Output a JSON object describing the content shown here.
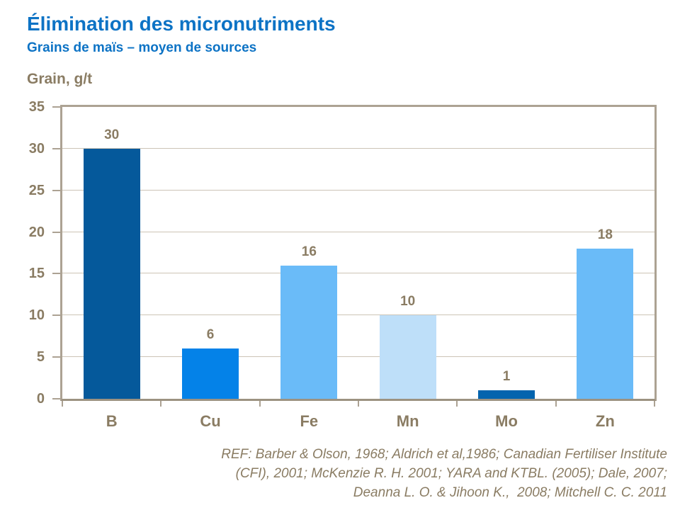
{
  "header": {
    "title": "Élimination des micronutriments",
    "subtitle": "Grains de maïs – moyen de sources"
  },
  "chart_data": {
    "type": "bar",
    "title": "Élimination des micronutriments",
    "subtitle": "Grains de maïs – moyen de sources",
    "ylabel": "Grain, g/t",
    "xlabel": "",
    "categories": [
      "B",
      "Cu",
      "Fe",
      "Mn",
      "Mo",
      "Zn"
    ],
    "values": [
      30,
      6,
      16,
      10,
      1,
      18
    ],
    "bar_colors": [
      "#05599b",
      "#0482e8",
      "#6abbf8",
      "#bedff9",
      "#0464ae",
      "#6abbf8"
    ],
    "ylim": [
      0,
      35
    ],
    "ytick_step": 5,
    "grid": true,
    "legend": false,
    "data_labels": true
  },
  "footer": {
    "reference_lines": [
      "REF: Barber & Olson, 1968; Aldrich et al,1986; Canadian Fertiliser Institute",
      "(CFI), 2001; McKenzie R. H. 2001; YARA and KTBL. (2005); Dale, 2007;",
      "Deanna L. O. & Jihoon K.,  2008; Mitchell C. C. 2011"
    ]
  },
  "colors": {
    "title_blue": "#0d73c5",
    "text_brown": "#8a7c63",
    "grid_line": "#ccc4b6",
    "plot_border": "#aca293",
    "axis_line": "#9c9281"
  }
}
